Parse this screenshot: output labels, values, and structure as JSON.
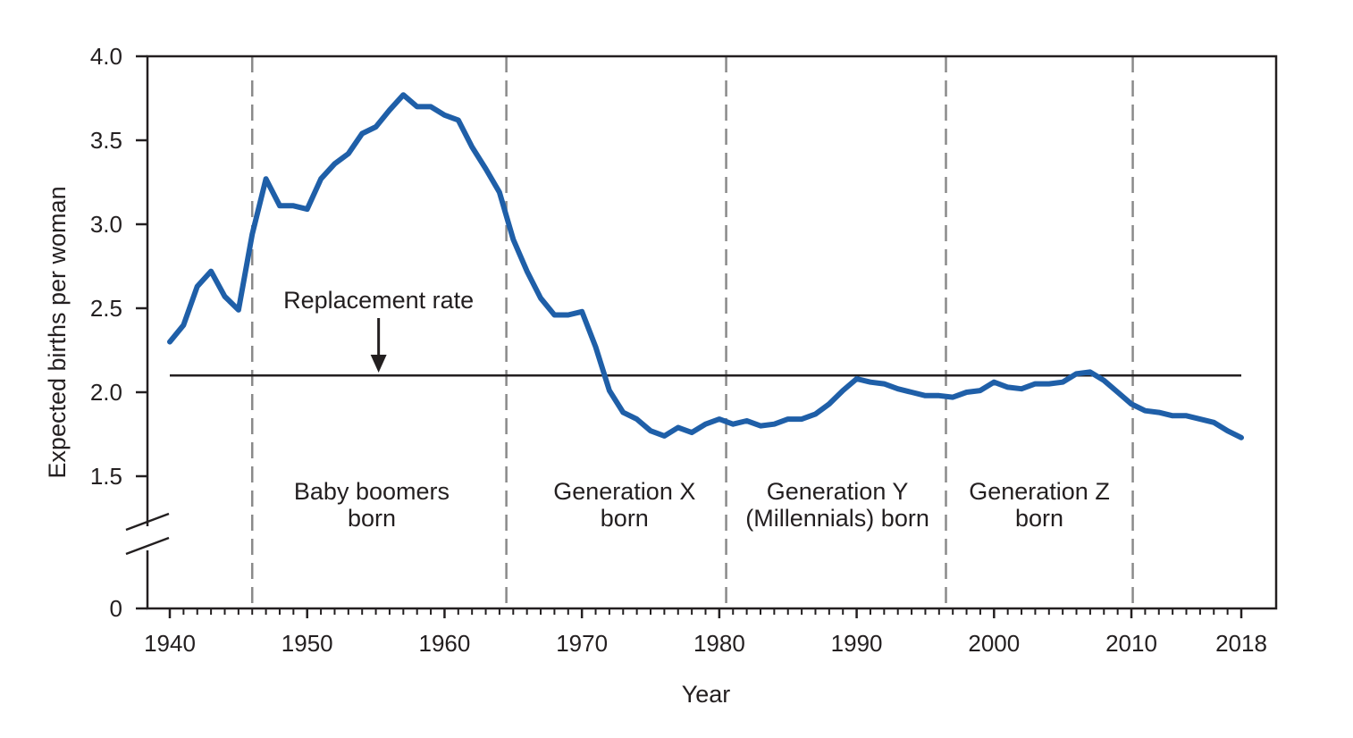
{
  "chart_data": {
    "type": "line",
    "xlabel": "Year",
    "ylabel": "Expected births per woman",
    "xlim": [
      1940,
      2018
    ],
    "ylim": [
      0,
      4.0
    ],
    "axis_break": true,
    "x_ticks": [
      1940,
      1950,
      1960,
      1970,
      1980,
      1990,
      2000,
      2010,
      2018
    ],
    "y_ticks": [
      {
        "value": 0,
        "label": "0"
      },
      {
        "value": 1.5,
        "label": "1.5"
      },
      {
        "value": 2.0,
        "label": "2.0"
      },
      {
        "value": 2.5,
        "label": "2.5"
      },
      {
        "value": 3.0,
        "label": "3.0"
      },
      {
        "value": 3.5,
        "label": "3.5"
      },
      {
        "value": 4.0,
        "label": "4.0"
      }
    ],
    "line_color": "#1f5fa8",
    "series": [
      {
        "x": [
          1940,
          1941,
          1942,
          1943,
          1944,
          1945,
          1946,
          1947,
          1948,
          1949,
          1950,
          1951,
          1952,
          1953,
          1954,
          1955,
          1956,
          1957,
          1958,
          1959,
          1960,
          1961,
          1962,
          1963,
          1964,
          1965,
          1966,
          1967,
          1968,
          1969,
          1970,
          1971,
          1972,
          1973,
          1974,
          1975,
          1976,
          1977,
          1978,
          1979,
          1980,
          1981,
          1982,
          1983,
          1984,
          1985,
          1986,
          1987,
          1988,
          1989,
          1990,
          1991,
          1992,
          1993,
          1994,
          1995,
          1996,
          1997,
          1998,
          1999,
          2000,
          2001,
          2002,
          2003,
          2004,
          2005,
          2006,
          2007,
          2008,
          2009,
          2010,
          2011,
          2012,
          2013,
          2014,
          2015,
          2016,
          2017,
          2018
        ],
        "values": [
          2.3,
          2.4,
          2.63,
          2.72,
          2.57,
          2.49,
          2.94,
          3.27,
          3.11,
          3.11,
          3.09,
          3.27,
          3.36,
          3.42,
          3.54,
          3.58,
          3.68,
          3.77,
          3.7,
          3.7,
          3.65,
          3.62,
          3.46,
          3.33,
          3.19,
          2.91,
          2.72,
          2.56,
          2.46,
          2.46,
          2.48,
          2.27,
          2.01,
          1.88,
          1.84,
          1.77,
          1.74,
          1.79,
          1.76,
          1.81,
          1.84,
          1.81,
          1.83,
          1.8,
          1.81,
          1.84,
          1.84,
          1.87,
          1.93,
          2.01,
          2.08,
          2.06,
          2.05,
          2.02,
          2.0,
          1.98,
          1.98,
          1.97,
          2.0,
          2.01,
          2.06,
          2.03,
          2.02,
          2.05,
          2.05,
          2.06,
          2.11,
          2.12,
          2.07,
          2.0,
          1.93,
          1.89,
          1.88,
          1.86,
          1.86,
          1.84,
          1.82,
          1.77,
          1.73
        ]
      }
    ],
    "reference_line": {
      "value": 2.1,
      "x_start": 1940,
      "x_end": 2018,
      "label": "Replacement rate",
      "arrow_x": 1955.2
    },
    "generation_boundaries": [
      1946,
      1964.5,
      1980.5,
      1996.5,
      2010.1
    ],
    "eras": [
      {
        "lines": [
          "Baby boomers",
          "born"
        ],
        "center_x": 1954.7
      },
      {
        "lines": [
          "Generation X",
          "born"
        ],
        "center_x": 1973.1
      },
      {
        "lines": [
          "Generation Y",
          "(Millennials) born"
        ],
        "center_x": 1988.6
      },
      {
        "lines": [
          "Generation Z",
          "born"
        ],
        "center_x": 2003.3
      }
    ]
  }
}
